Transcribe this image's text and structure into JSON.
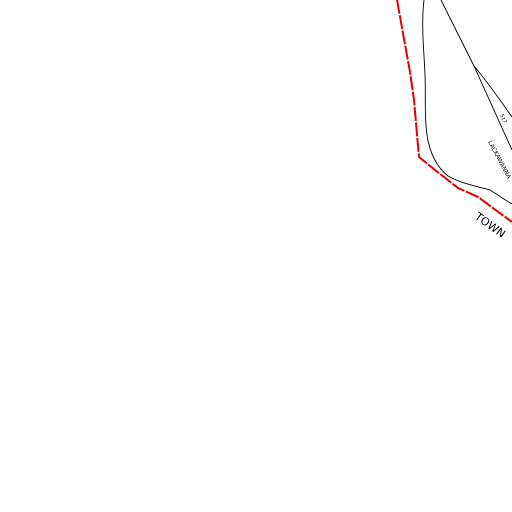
{
  "labels": {
    "boundary": "TOWN",
    "road": "LACKAWANNA",
    "route": "517"
  }
}
